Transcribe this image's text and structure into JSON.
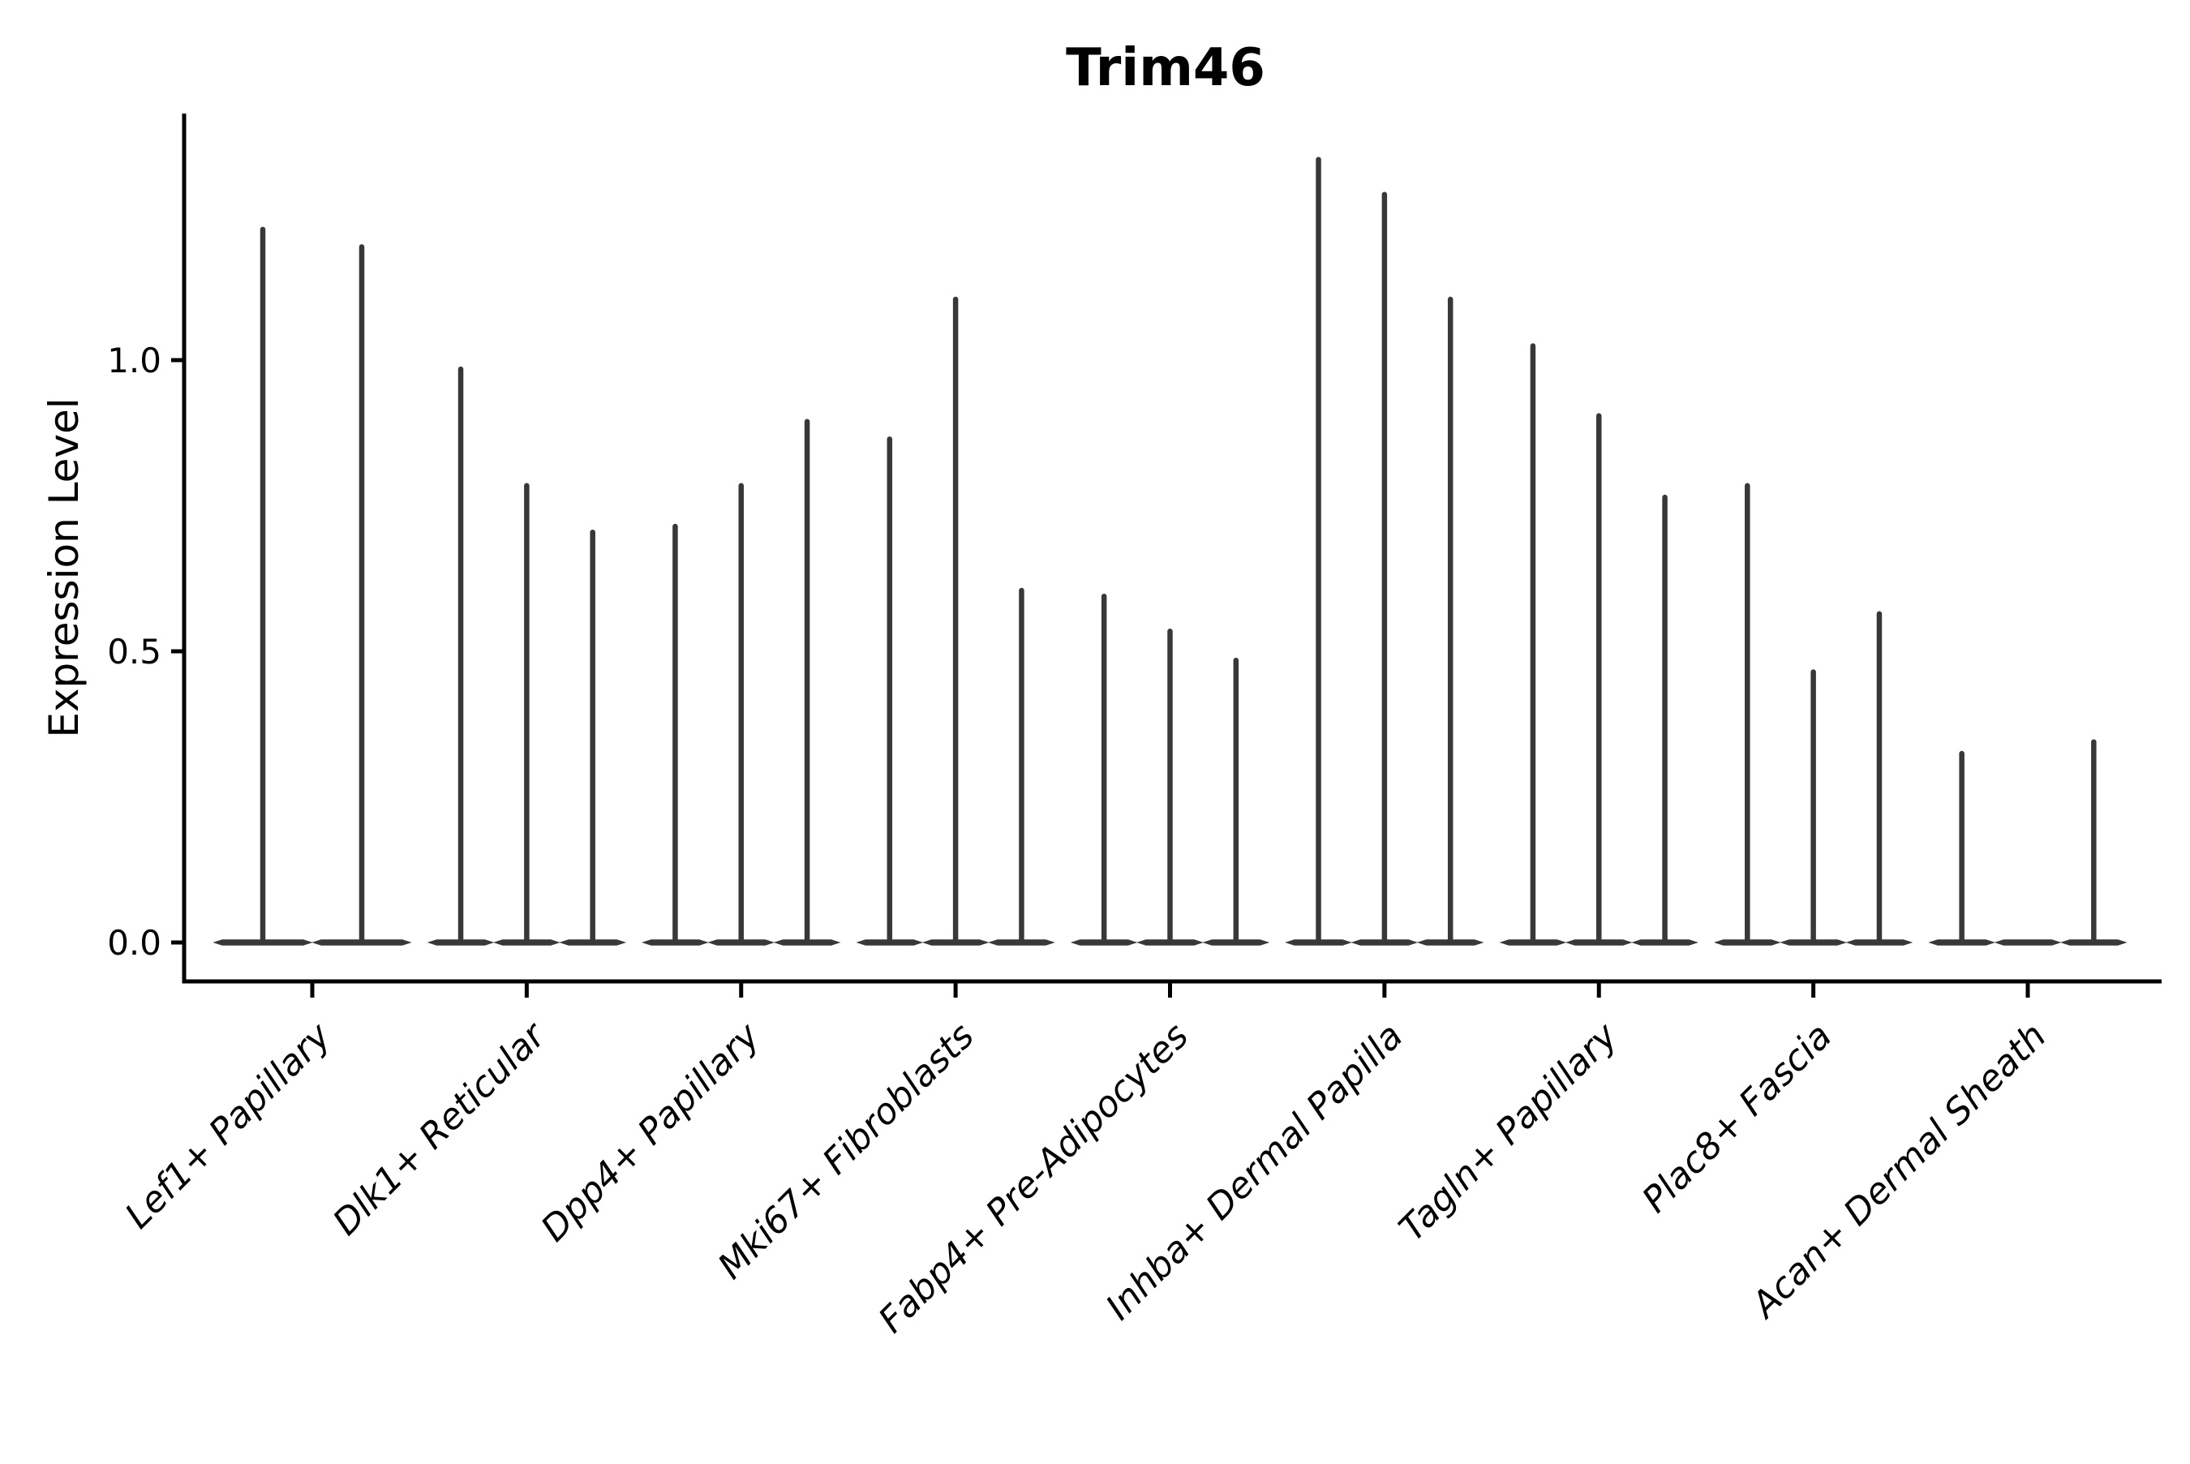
{
  "figure": {
    "title": "Trim46",
    "ylabel": "Expression Level"
  },
  "chart_data": {
    "type": "violin",
    "title": "Trim46",
    "ylabel": "Expression Level",
    "xlabel": "",
    "grid": false,
    "legend_position": "none",
    "background_color": "#ffffff",
    "violin_color": "#383838",
    "axis_color": "#000000",
    "text_color": "#000000",
    "ylim": [
      -0.07,
      1.42
    ],
    "yticks": [
      0.0,
      0.5,
      1.0
    ],
    "ytick_labels": [
      "0.0",
      "0.5",
      "1.0"
    ],
    "xtick_label_rotation_deg": 45,
    "xtick_label_style": "italic",
    "categories": [
      "Lef1+ Papillary",
      "Dlk1+ Reticular",
      "Dpp4+ Papillary",
      "Mki67+ Fibroblasts",
      "Fabp4+ Pre-Adipocytes",
      "Inhba+ Dermal Papilla",
      "Tagln+ Papillary",
      "Plac8+ Fascia",
      "Acan+ Dermal Sheath"
    ],
    "series": [
      {
        "category": "Lef1+ Papillary",
        "violin_max_values": [
          1.23,
          1.2
        ]
      },
      {
        "category": "Dlk1+ Reticular",
        "violin_max_values": [
          0.99,
          0.79,
          0.71
        ]
      },
      {
        "category": "Dpp4+ Papillary",
        "violin_max_values": [
          0.72,
          0.79,
          0.9
        ]
      },
      {
        "category": "Mki67+ Fibroblasts",
        "violin_max_values": [
          0.87,
          1.11,
          0.61
        ]
      },
      {
        "category": "Fabp4+ Pre-Adipocytes",
        "violin_max_values": [
          0.6,
          0.54,
          0.49
        ]
      },
      {
        "category": "Inhba+ Dermal Papilla",
        "violin_max_values": [
          1.35,
          1.29,
          1.11
        ]
      },
      {
        "category": "Tagln+ Papillary",
        "violin_max_values": [
          1.03,
          0.91,
          0.77
        ]
      },
      {
        "category": "Plac8+ Fascia",
        "violin_max_values": [
          0.79,
          0.47,
          0.57
        ]
      },
      {
        "category": "Acan+ Dermal Sheath",
        "violin_max_values": [
          0.33,
          0.0,
          0.35
        ]
      }
    ]
  }
}
